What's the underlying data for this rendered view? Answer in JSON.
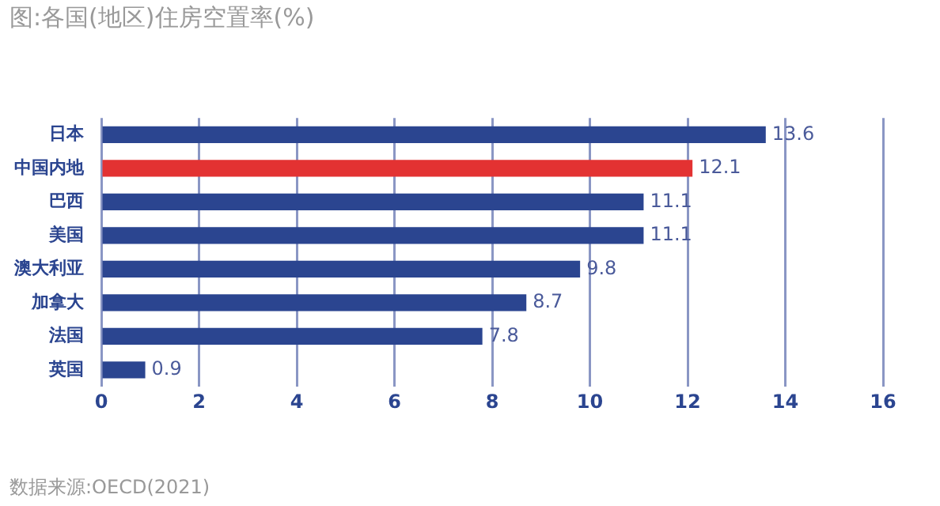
{
  "chart_data": {
    "type": "bar",
    "orientation": "horizontal",
    "title": "图:各国(地区)住房空置率(%)",
    "categories": [
      "日本",
      "中国内地",
      "巴西",
      "美国",
      "澳大利亚",
      "加拿大",
      "法国",
      "英国"
    ],
    "values": [
      13.6,
      12.1,
      11.1,
      11.1,
      9.8,
      8.7,
      7.8,
      0.9
    ],
    "colors": [
      "#2b4590",
      "#e33232",
      "#2b4590",
      "#2b4590",
      "#2b4590",
      "#2b4590",
      "#2b4590",
      "#2b4590"
    ],
    "xlim": [
      0,
      16
    ],
    "xticks": [
      0,
      2,
      4,
      6,
      8,
      10,
      12,
      14,
      16
    ],
    "grid": "x",
    "data_labels": true,
    "annotations": [
      "数据来源:OECD(2021)"
    ]
  }
}
